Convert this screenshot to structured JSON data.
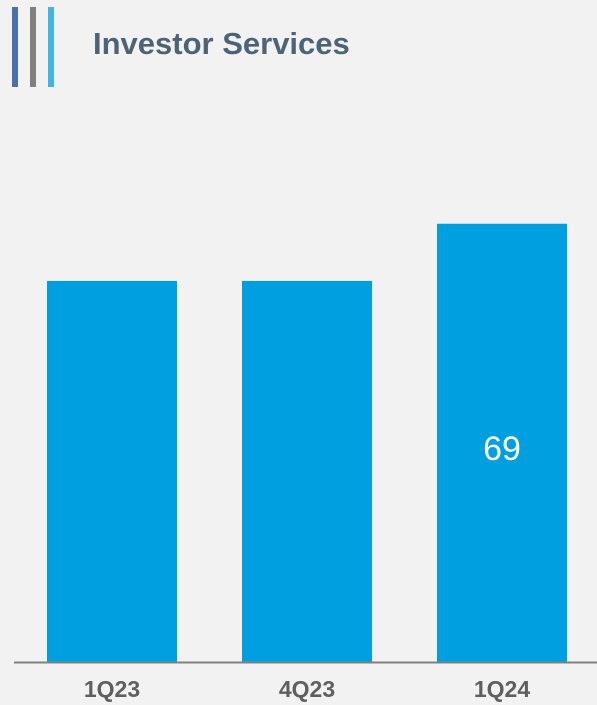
{
  "header": {
    "title": "Investor Services",
    "accent_colors": [
      "#4a6fae",
      "#808080",
      "#41b6e6"
    ]
  },
  "colors": {
    "bar": "#009fdf",
    "axis": "#808080",
    "tick_label": "#5f5f5f",
    "data_label": "#ffffff",
    "background": "#f2f2f2"
  },
  "chart_data": {
    "type": "bar",
    "categories": [
      "1Q23",
      "4Q23",
      "1Q24"
    ],
    "values": [
      60,
      60,
      69
    ],
    "data_labels": [
      "",
      "",
      "69"
    ],
    "ylim": [
      0,
      74
    ],
    "grid": false,
    "legend": "none",
    "xlabel": "",
    "ylabel": ""
  }
}
